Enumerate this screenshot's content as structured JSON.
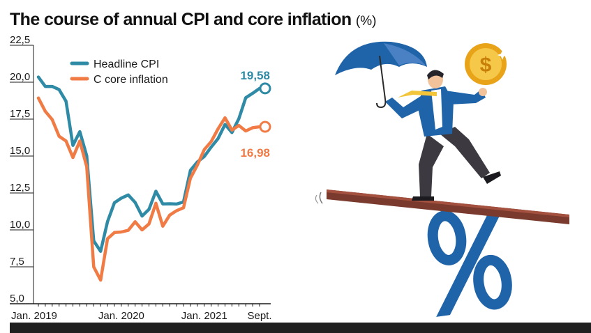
{
  "header": {
    "title": "The course of annual CPI and core inflation",
    "unit": "(%)"
  },
  "colors": {
    "headline": "#2f8aa6",
    "core": "#f07b45",
    "text": "#1a1a1a",
    "bar": "#1f1f1f"
  },
  "chart_data": {
    "type": "line",
    "title": "The course of annual CPI and core inflation (%)",
    "xlabel": "",
    "ylabel": "",
    "ylim": [
      5.0,
      22.5
    ],
    "yticks": [
      "5,0",
      "7,5",
      "10,0",
      "12,5",
      "15,0",
      "17,5",
      "20,0",
      "22,5"
    ],
    "ytick_values": [
      5.0,
      7.5,
      10.0,
      12.5,
      15.0,
      17.5,
      20.0,
      22.5
    ],
    "xticks": [
      {
        "label": "Jan. 2019",
        "x": 0
      },
      {
        "label": "Jan. 2020",
        "x": 12
      },
      {
        "label": "Jan. 2021",
        "x": 24
      },
      {
        "label": "Sept.",
        "x": 32
      }
    ],
    "grid": false,
    "legend": "top-left",
    "series": [
      {
        "name": "Headline CPI",
        "color": "#2f8aa6",
        "end_label": "19,58",
        "values": [
          20.35,
          19.71,
          19.71,
          19.5,
          18.71,
          15.72,
          16.65,
          15.01,
          9.26,
          8.55,
          10.56,
          11.84,
          12.15,
          12.37,
          11.86,
          10.94,
          11.39,
          12.62,
          11.76,
          11.77,
          11.75,
          11.89,
          14.03,
          14.6,
          14.97,
          15.61,
          16.19,
          17.14,
          16.59,
          17.53,
          18.95,
          19.25,
          19.58
        ]
      },
      {
        "name": "C core inflation",
        "color": "#f07b45",
        "end_label": "16,98",
        "values": [
          18.93,
          18.03,
          17.47,
          16.34,
          16.02,
          14.9,
          16.02,
          14.28,
          7.5,
          6.6,
          9.4,
          9.82,
          9.86,
          9.97,
          10.55,
          10.0,
          10.4,
          11.8,
          10.25,
          11.0,
          11.3,
          11.5,
          13.5,
          14.38,
          15.44,
          15.98,
          16.85,
          17.59,
          16.76,
          17.07,
          16.7,
          16.92,
          16.98
        ]
      }
    ]
  },
  "illustration": {
    "subject": "businessman-balancing-on-seesaw",
    "icons": [
      "umbrella-icon",
      "dollar-coin-icon",
      "percent-sign-icon"
    ],
    "coin_symbol": "$"
  }
}
